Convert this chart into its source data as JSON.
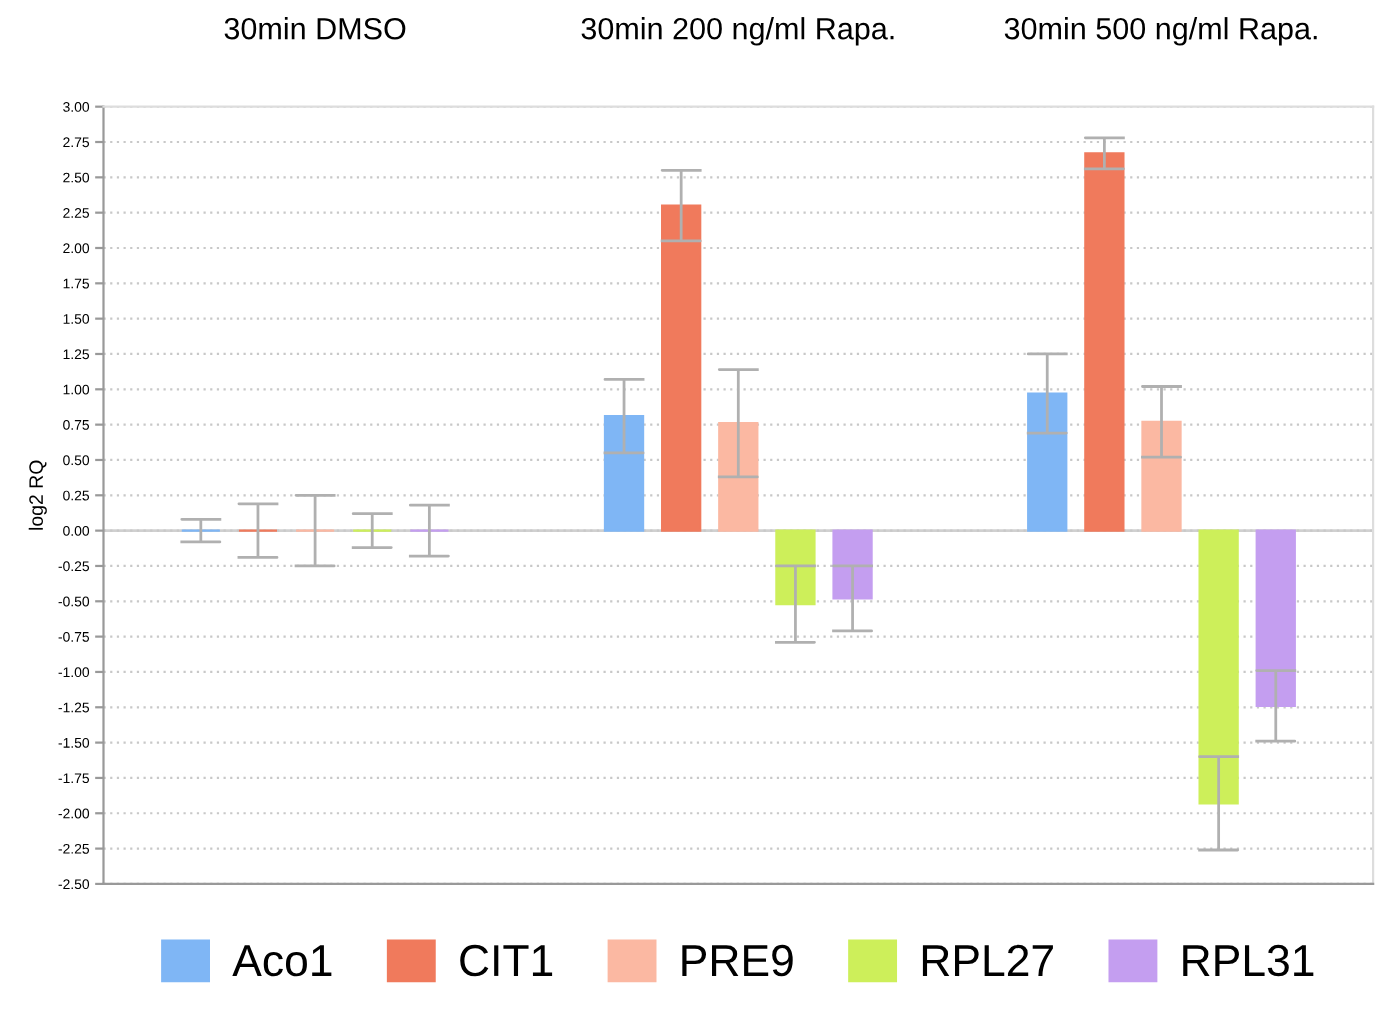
{
  "chart_data": {
    "type": "bar",
    "categories": [
      "30min DMSO",
      "30min 200 ng/ml Rapa.",
      "30min 500 ng/ml Rapa."
    ],
    "ylabel": "log2 RQ",
    "series": [
      {
        "name": "Aco1",
        "color": "#7fb6f5",
        "values": [
          0,
          0.81,
          0.97
        ],
        "errors": [
          0.08,
          0.26,
          0.28
        ]
      },
      {
        "name": "CIT1",
        "color": "#f07a5c",
        "values": [
          0,
          2.3,
          2.67
        ],
        "errors": [
          0.19,
          0.25,
          0.11
        ]
      },
      {
        "name": "PRE9",
        "color": "#fbb8a2",
        "values": [
          0,
          0.76,
          0.77
        ],
        "errors": [
          0.25,
          0.38,
          0.25
        ]
      },
      {
        "name": "RPL27",
        "color": "#cdef5a",
        "values": [
          0,
          -0.52,
          -1.93
        ],
        "errors": [
          0.12,
          0.27,
          0.33
        ]
      },
      {
        "name": "RPL31",
        "color": "#c49ef0",
        "values": [
          0,
          -0.48,
          -1.24
        ],
        "errors": [
          0.18,
          0.23,
          0.25
        ]
      }
    ],
    "ylim": [
      -2.5,
      3.0
    ],
    "yticks": [
      {
        "value": -2.5,
        "label": "-2.50"
      },
      {
        "value": -2.25,
        "label": "-2.25"
      },
      {
        "value": -2.0,
        "label": "-2.00"
      },
      {
        "value": -1.75,
        "label": "-1.75"
      },
      {
        "value": -1.5,
        "label": "-1.50"
      },
      {
        "value": -1.25,
        "label": "-1.25"
      },
      {
        "value": -1.0,
        "label": "-1.00"
      },
      {
        "value": -0.75,
        "label": "-0.75"
      },
      {
        "value": -0.5,
        "label": "-0.50"
      },
      {
        "value": -0.25,
        "label": "-0.25"
      },
      {
        "value": 0,
        "label": "0.00"
      },
      {
        "value": 0.25,
        "label": "0.25"
      },
      {
        "value": 0.5,
        "label": "0.50"
      },
      {
        "value": 0.75,
        "label": "0.75"
      },
      {
        "value": 1.0,
        "label": "1.00"
      },
      {
        "value": 1.25,
        "label": "1.25"
      },
      {
        "value": 1.5,
        "label": "1.50"
      },
      {
        "value": 1.75,
        "label": "1.75"
      },
      {
        "value": 2.0,
        "label": "2.00"
      },
      {
        "value": 2.25,
        "label": "2.25"
      },
      {
        "value": 2.5,
        "label": "2.50"
      },
      {
        "value": 2.75,
        "label": "2.75"
      },
      {
        "value": 3.0,
        "label": "3.00"
      }
    ],
    "grid": "y",
    "legend": "bottom"
  }
}
